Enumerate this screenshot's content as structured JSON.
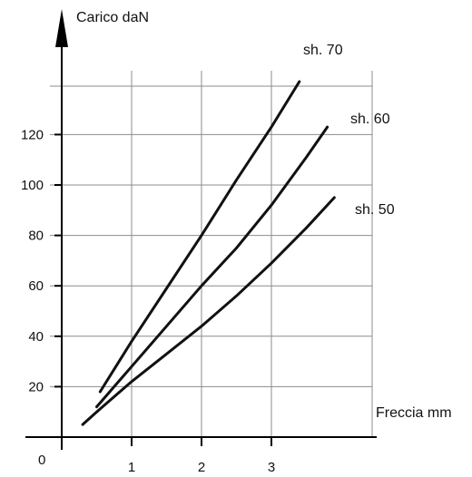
{
  "chart_data": {
    "type": "line",
    "title": "",
    "xlabel": "Freccia mm",
    "ylabel": "Carico daN",
    "origin_label": "0",
    "xlim": [
      0,
      4.5
    ],
    "ylim": [
      0,
      160
    ],
    "x_ticks": [
      1,
      2,
      3
    ],
    "y_ticks": [
      20,
      40,
      60,
      80,
      100,
      120
    ],
    "grid": true,
    "series": [
      {
        "name": "sh. 70",
        "x": [
          0.55,
          1.0,
          1.5,
          2.0,
          2.5,
          3.0,
          3.4
        ],
        "y": [
          18,
          38,
          59,
          80,
          102,
          123,
          141
        ]
      },
      {
        "name": "sh. 60",
        "x": [
          0.5,
          1.0,
          1.5,
          2.0,
          2.5,
          3.0,
          3.5,
          3.8
        ],
        "y": [
          12,
          28,
          44,
          60,
          75,
          92,
          111,
          123
        ]
      },
      {
        "name": "sh. 50",
        "x": [
          0.3,
          0.5,
          1.0,
          1.5,
          2.0,
          2.5,
          3.0,
          3.5,
          3.9
        ],
        "y": [
          5,
          10,
          22,
          33,
          44,
          56,
          69,
          83,
          95
        ]
      }
    ],
    "colors": {
      "line": "#111111",
      "grid": "#8c8c8c",
      "axis": "#000000"
    }
  }
}
